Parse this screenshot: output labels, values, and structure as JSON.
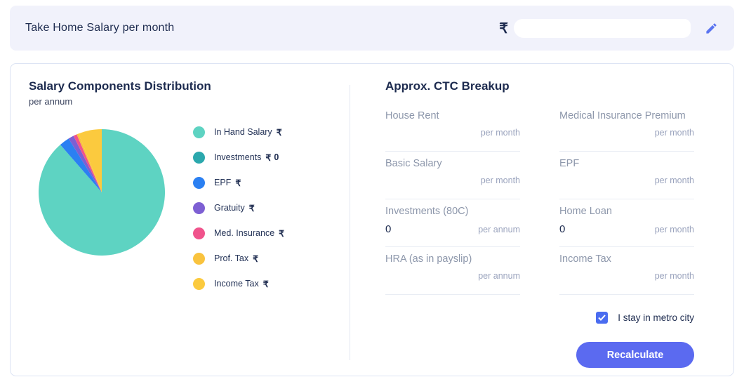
{
  "top_bar": {
    "title": "Take Home Salary per month",
    "currency_symbol": "₹",
    "value": "",
    "value_redacted": true
  },
  "left_panel": {
    "title": "Salary Components Distribution",
    "subtitle": "per annum",
    "legend": [
      {
        "label": "In Hand Salary",
        "currency": "₹",
        "value": "",
        "color": "#5ed3c2"
      },
      {
        "label": "Investments",
        "currency": "₹",
        "value": "0",
        "color": "#2ba8ad"
      },
      {
        "label": "EPF",
        "currency": "₹",
        "value": "",
        "color": "#2b80f2"
      },
      {
        "label": "Gratuity",
        "currency": "₹",
        "value": "",
        "color": "#7d5fd3"
      },
      {
        "label": "Med. Insurance",
        "currency": "₹",
        "value": "",
        "color": "#f0538c"
      },
      {
        "label": "Prof. Tax",
        "currency": "₹",
        "value": "",
        "color": "#f9c33e"
      },
      {
        "label": "Income Tax",
        "currency": "₹",
        "value": "",
        "color": "#fbca3e"
      }
    ]
  },
  "chart_data": {
    "type": "pie",
    "title": "Salary Components Distribution",
    "subtitle": "per annum",
    "legend_position": "right",
    "slices": [
      {
        "label": "In Hand Salary",
        "percent": 88.6,
        "color": "#5ed3c2"
      },
      {
        "label": "Investments",
        "percent": 0,
        "color": "#2ba8ad"
      },
      {
        "label": "EPF",
        "percent": 2.6,
        "color": "#2b80f2"
      },
      {
        "label": "Gratuity",
        "percent": 1.4,
        "color": "#7d5fd3"
      },
      {
        "label": "Med. Insurance",
        "percent": 0.9,
        "color": "#f0538c"
      },
      {
        "label": "Prof. Tax",
        "percent": 0.5,
        "color": "#f9c33e"
      },
      {
        "label": "Income Tax",
        "percent": 6.0,
        "color": "#fbca3e"
      }
    ]
  },
  "right_panel": {
    "title": "Approx. CTC Breakup",
    "fields": [
      {
        "label": "House Rent",
        "value": "",
        "unit": "per month"
      },
      {
        "label": "Medical Insurance Premium",
        "value": "",
        "unit": "per month"
      },
      {
        "label": "Basic Salary",
        "value": "",
        "unit": "per month"
      },
      {
        "label": "EPF",
        "value": "",
        "unit": "per month"
      },
      {
        "label": "Investments (80C)",
        "value": "0",
        "unit": "per annum"
      },
      {
        "label": "Home Loan",
        "value": "0",
        "unit": "per month"
      },
      {
        "label": "HRA (as in payslip)",
        "value": "",
        "unit": "per annum"
      },
      {
        "label": "Income Tax",
        "value": "",
        "unit": "per month"
      }
    ],
    "metro_checkbox": {
      "label": "I stay in metro city",
      "checked": true
    },
    "recalculate_label": "Recalculate"
  },
  "colors": {
    "accent_button": "#5b6af0",
    "accent_checkbox": "#4a6cf0",
    "top_bar_bg": "#f1f2fb",
    "heading_text": "#1d2b4f"
  }
}
